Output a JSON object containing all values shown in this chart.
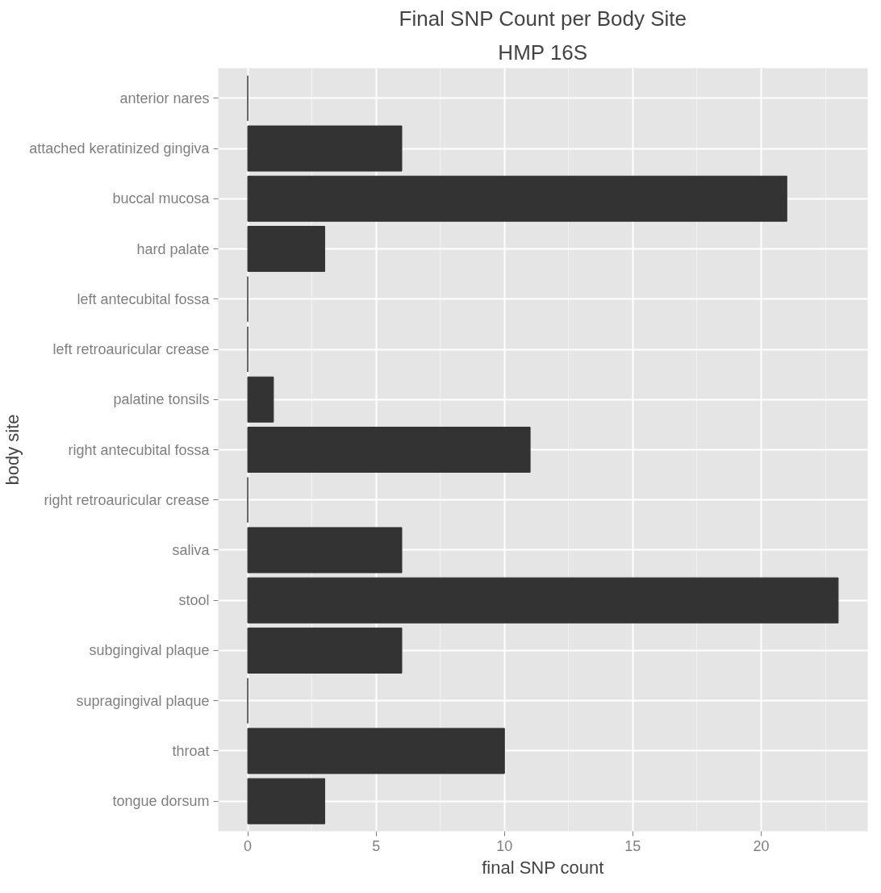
{
  "chart_data": {
    "type": "bar",
    "orientation": "horizontal",
    "title": "Final SNP Count per Body Site",
    "subtitle": "HMP 16S",
    "xlabel": "final SNP count",
    "ylabel": "body site",
    "categories": [
      "anterior nares",
      "attached keratinized gingiva",
      "buccal mucosa",
      "hard palate",
      "left antecubital fossa",
      "left retroauricular crease",
      "palatine tonsils",
      "right antecubital fossa",
      "right retroauricular crease",
      "saliva",
      "stool",
      "subgingival plaque",
      "supragingival plaque",
      "throat",
      "tongue dorsum"
    ],
    "values": [
      0,
      6,
      21,
      3,
      0,
      0,
      1,
      11,
      0,
      6,
      23,
      6,
      0,
      10,
      3
    ],
    "color": "#333333",
    "xlim": [
      -1.15,
      24.15
    ],
    "xticks": [
      0,
      5,
      10,
      15,
      20
    ],
    "grid": true
  }
}
